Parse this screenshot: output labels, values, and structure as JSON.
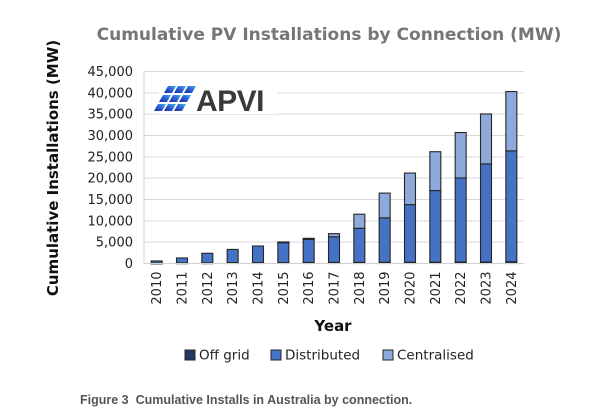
{
  "chart_data": {
    "type": "bar",
    "stacked": true,
    "title": "Cumulative PV Installations by Connection (MW)",
    "xlabel": "Year",
    "ylabel": "Cumulative Installations (MW)",
    "ylim": [
      0,
      45000
    ],
    "yticks": [
      0,
      5000,
      10000,
      15000,
      20000,
      25000,
      30000,
      35000,
      40000,
      45000
    ],
    "ytick_labels": [
      "0",
      "5,000",
      "10,000",
      "15,000",
      "20,000",
      "25,000",
      "30,000",
      "35,000",
      "40,000",
      "45,000"
    ],
    "grid": true,
    "legend_position": "bottom",
    "categories": [
      "2010",
      "2011",
      "2012",
      "2013",
      "2014",
      "2015",
      "2016",
      "2017",
      "2018",
      "2019",
      "2020",
      "2021",
      "2022",
      "2023",
      "2024"
    ],
    "series": [
      {
        "name": "Off grid",
        "color": "#1f3864",
        "values": [
          100,
          150,
          150,
          200,
          200,
          200,
          250,
          250,
          250,
          300,
          300,
          300,
          350,
          350,
          400
        ]
      },
      {
        "name": "Distributed",
        "color": "#4472c4",
        "values": [
          500,
          1150,
          2250,
          3100,
          3900,
          4700,
          5400,
          6000,
          8000,
          10400,
          13500,
          16800,
          19700,
          23000,
          26000
        ]
      },
      {
        "name": "Centralised",
        "color": "#8ea9db",
        "values": [
          0,
          0,
          0,
          0,
          0,
          150,
          250,
          750,
          3300,
          5800,
          7400,
          9100,
          10650,
          11700,
          13900
        ]
      }
    ]
  },
  "logo": {
    "text": "APVI"
  },
  "caption": "Figure 3  Cumulative Installs in Australia by connection."
}
